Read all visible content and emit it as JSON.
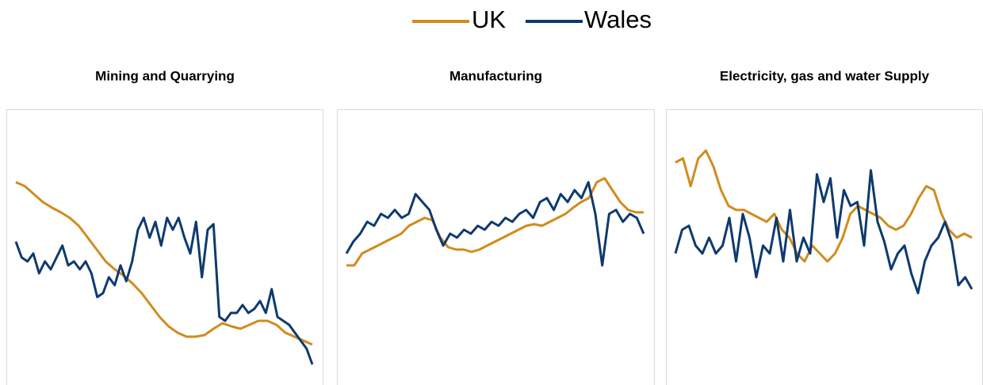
{
  "legend": [
    {
      "name": "UK",
      "color": "#d08c1e"
    },
    {
      "name": "Wales",
      "color": "#0e3a6e"
    }
  ],
  "chart_data": [
    {
      "type": "line",
      "title": "Mining and Quarrying",
      "ylim": [
        0,
        340
      ],
      "series": [
        {
          "values": [
            250,
            245,
            235,
            225,
            218,
            212,
            205,
            195,
            180,
            165,
            150,
            140,
            132,
            122,
            110,
            95,
            80,
            68,
            60,
            55,
            55,
            57,
            65,
            72,
            68,
            65,
            70,
            75,
            75,
            70,
            60,
            55,
            50,
            45
          ]
        },
        {
          "values": [
            175,
            155,
            150,
            160,
            135,
            150,
            140,
            155,
            170,
            145,
            150,
            140,
            150,
            135,
            105,
            110,
            130,
            120,
            145,
            125,
            150,
            190,
            205,
            180,
            200,
            170,
            205,
            190,
            205,
            180,
            160,
            200,
            130,
            190,
            197,
            80,
            75,
            85,
            85,
            95,
            85,
            90,
            100,
            85,
            115,
            80,
            75,
            70,
            60,
            50,
            40,
            20
          ]
        }
      ]
    },
    {
      "type": "line",
      "title": "Manufacturing",
      "ylim": [
        0,
        340
      ],
      "series": [
        {
          "values": [
            145,
            145,
            160,
            165,
            170,
            175,
            180,
            185,
            195,
            200,
            205,
            202,
            180,
            168,
            165,
            165,
            162,
            165,
            170,
            175,
            180,
            185,
            190,
            195,
            197,
            195,
            200,
            205,
            210,
            218,
            225,
            230,
            250,
            255,
            240,
            225,
            215,
            212,
            212
          ]
        },
        {
          "values": [
            160,
            175,
            185,
            200,
            195,
            210,
            205,
            215,
            205,
            210,
            235,
            225,
            215,
            190,
            170,
            185,
            180,
            190,
            185,
            195,
            190,
            200,
            195,
            205,
            200,
            210,
            215,
            205,
            225,
            230,
            215,
            235,
            225,
            240,
            230,
            250,
            210,
            145,
            210,
            215,
            200,
            210,
            205,
            185
          ]
        }
      ]
    },
    {
      "type": "line",
      "title": "Electricity, gas and water Supply",
      "ylim": [
        0,
        340
      ],
      "series": [
        {
          "values": [
            275,
            280,
            245,
            280,
            290,
            270,
            240,
            220,
            215,
            215,
            210,
            205,
            200,
            210,
            190,
            180,
            160,
            150,
            170,
            160,
            150,
            160,
            180,
            210,
            220,
            215,
            210,
            205,
            195,
            190,
            195,
            210,
            230,
            245,
            240,
            210,
            190,
            180,
            185,
            180
          ]
        },
        {
          "values": [
            160,
            190,
            195,
            170,
            160,
            180,
            160,
            170,
            205,
            150,
            210,
            180,
            130,
            170,
            160,
            205,
            150,
            215,
            150,
            180,
            160,
            260,
            225,
            255,
            180,
            240,
            220,
            225,
            170,
            265,
            200,
            175,
            140,
            160,
            170,
            135,
            110,
            150,
            170,
            180,
            200,
            175,
            120,
            130,
            115
          ]
        }
      ]
    }
  ]
}
